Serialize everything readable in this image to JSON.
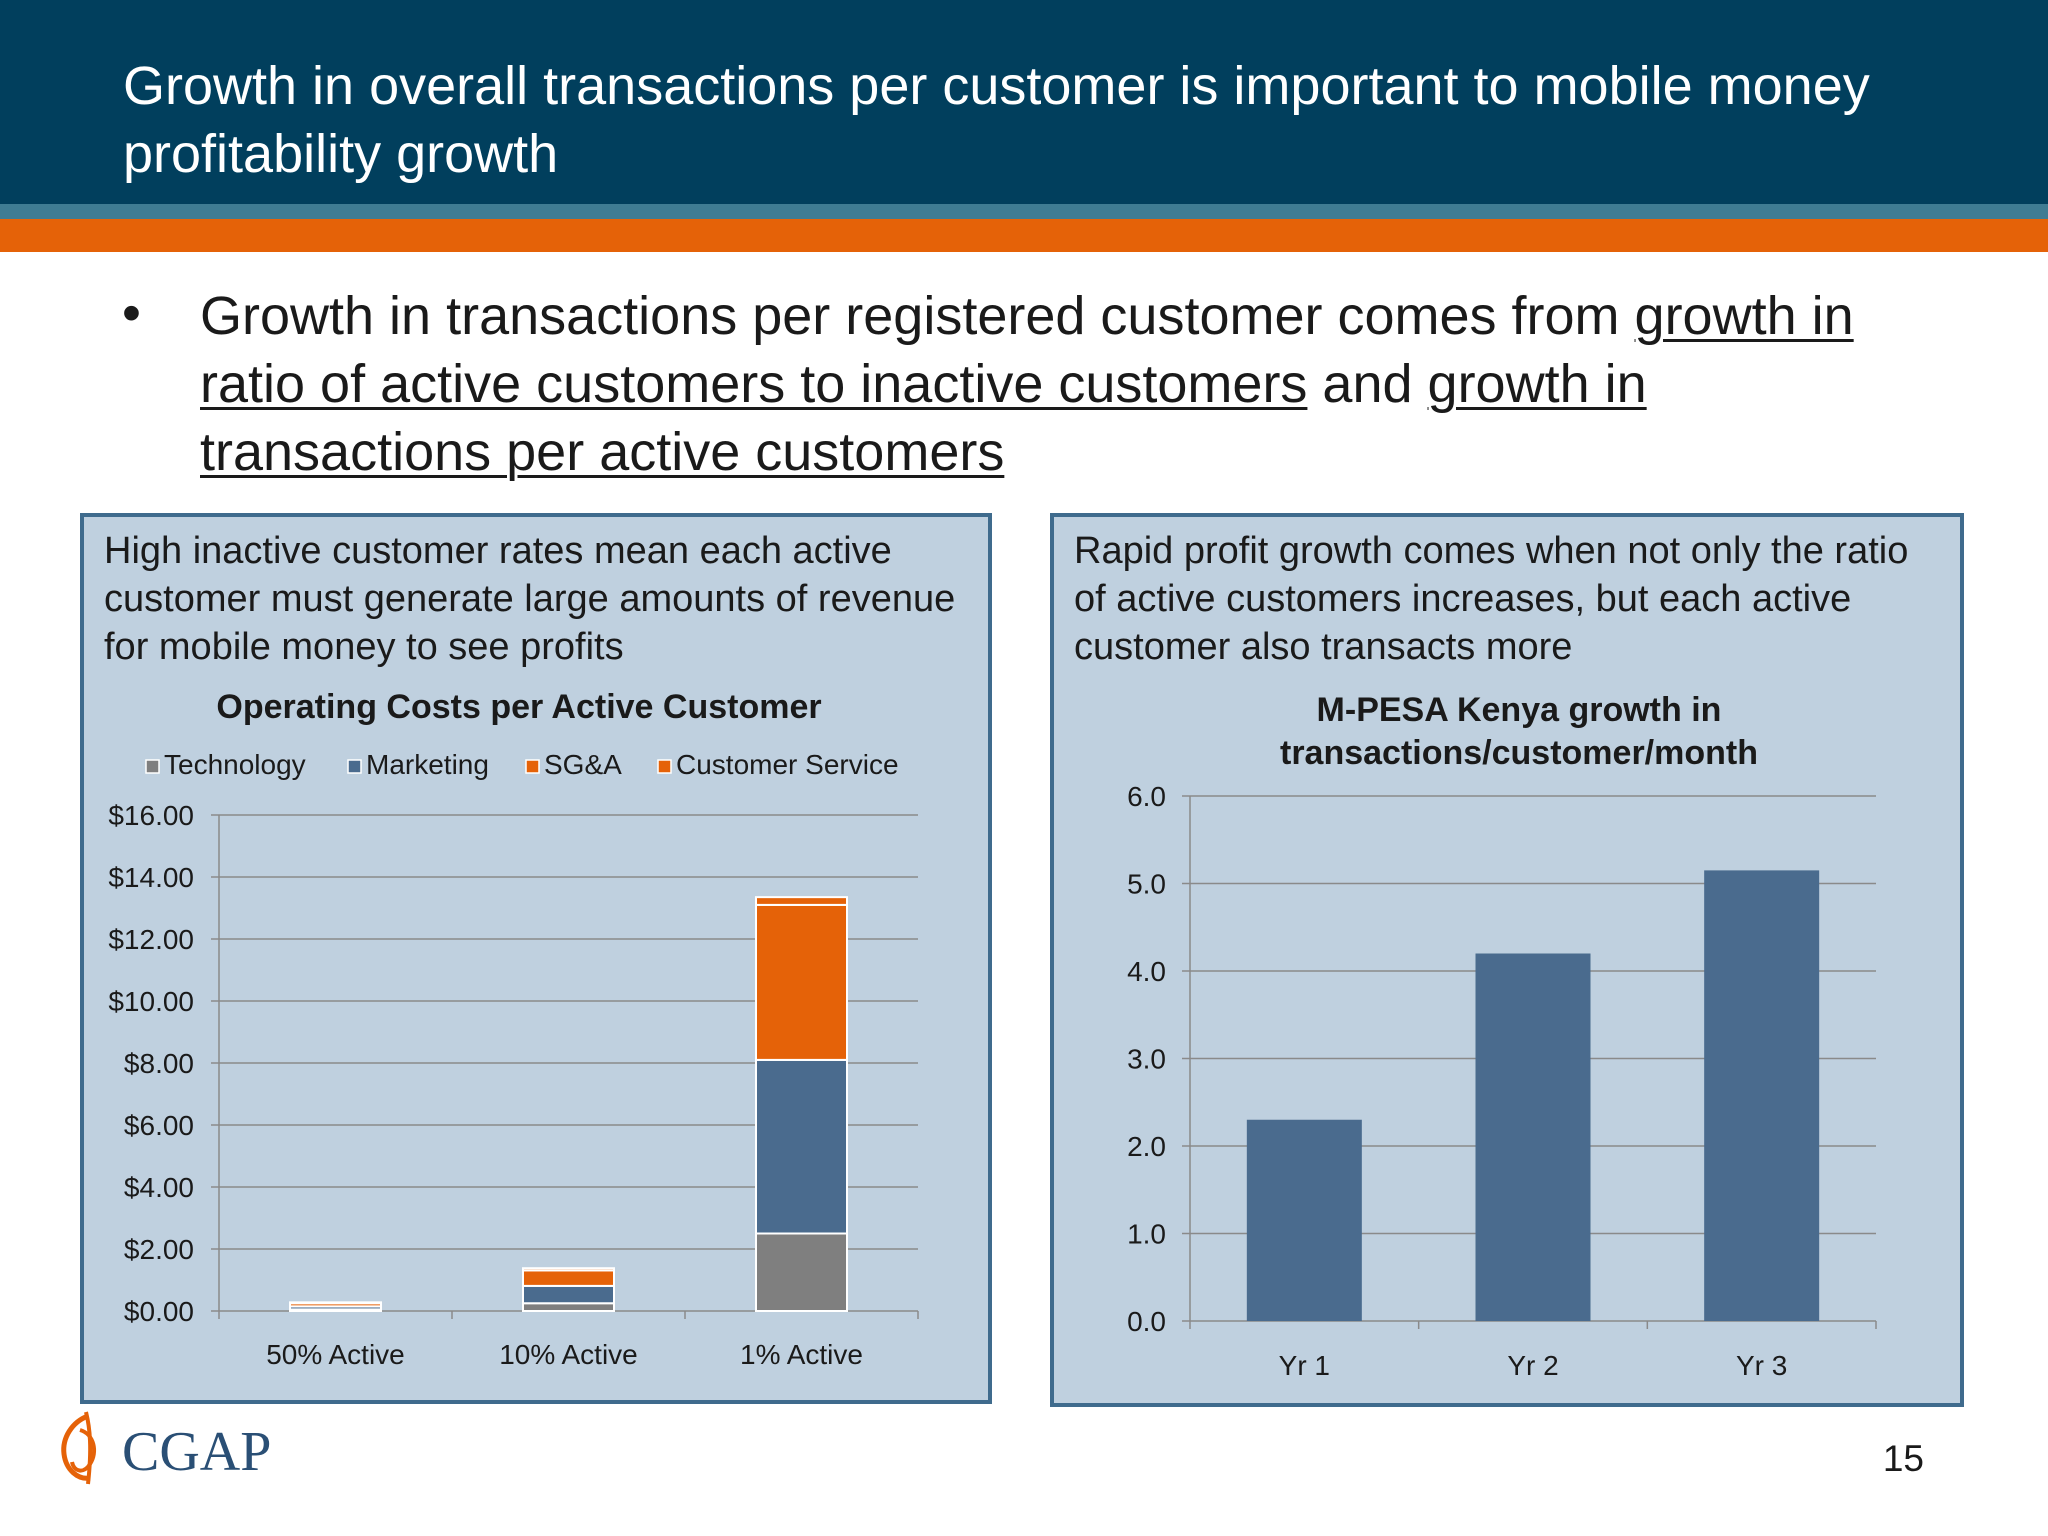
{
  "slide": {
    "title": "Growth in overall transactions per customer is important to mobile money profitability growth",
    "bullet_symbol": "•",
    "bullet": {
      "part1": "Growth in transactions per registered customer comes from ",
      "link1": "growth in ratio of active customers to inactive customers",
      "part2": " and ",
      "link2": "growth in transactions per active customers"
    },
    "page_number": "15",
    "logo_text": "CGAP"
  },
  "colors": {
    "header": "#013f5d",
    "orange": "#e56208",
    "panel": "#bfd0df",
    "technology": "#7f7f7f",
    "marketing": "#4a6b8e",
    "sga": "#e56208",
    "customer_service": "#e56208",
    "mpesa_bar": "#4a6b8e"
  },
  "left_panel": {
    "caption": "High inactive customer rates mean each active customer must generate large amounts of revenue for mobile money to see profits"
  },
  "right_panel": {
    "caption": "Rapid profit growth comes when not only the ratio of active customers increases, but each active customer also transacts more"
  },
  "chart_data": [
    {
      "type": "bar",
      "stacked": true,
      "title": "Operating Costs per Active Customer",
      "categories": [
        "50% Active",
        "10% Active",
        "1% Active"
      ],
      "series": [
        {
          "name": "Technology",
          "values": [
            0.05,
            0.25,
            2.5
          ]
        },
        {
          "name": "Marketing",
          "values": [
            0.1,
            0.56,
            5.6
          ]
        },
        {
          "name": "SG&A",
          "values": [
            0.1,
            0.5,
            5.0
          ]
        },
        {
          "name": "Customer Service",
          "values": [
            0.03,
            0.07,
            0.25
          ]
        }
      ],
      "yticks": [
        "$0.00",
        "$2.00",
        "$4.00",
        "$6.00",
        "$8.00",
        "$10.00",
        "$12.00",
        "$14.00",
        "$16.00"
      ],
      "ylim": [
        0,
        16
      ],
      "legend": "top",
      "grid": true
    },
    {
      "type": "bar",
      "title": "M-PESA Kenya growth in transactions/customer/month",
      "title_lines": [
        "M-PESA Kenya growth in",
        "transactions/customer/month"
      ],
      "categories": [
        "Yr 1",
        "Yr 2",
        "Yr 3"
      ],
      "values": [
        2.3,
        4.2,
        5.15
      ],
      "yticks": [
        "0.0",
        "1.0",
        "2.0",
        "3.0",
        "4.0",
        "5.0",
        "6.0"
      ],
      "ylim": [
        0,
        6
      ],
      "grid": true
    }
  ]
}
